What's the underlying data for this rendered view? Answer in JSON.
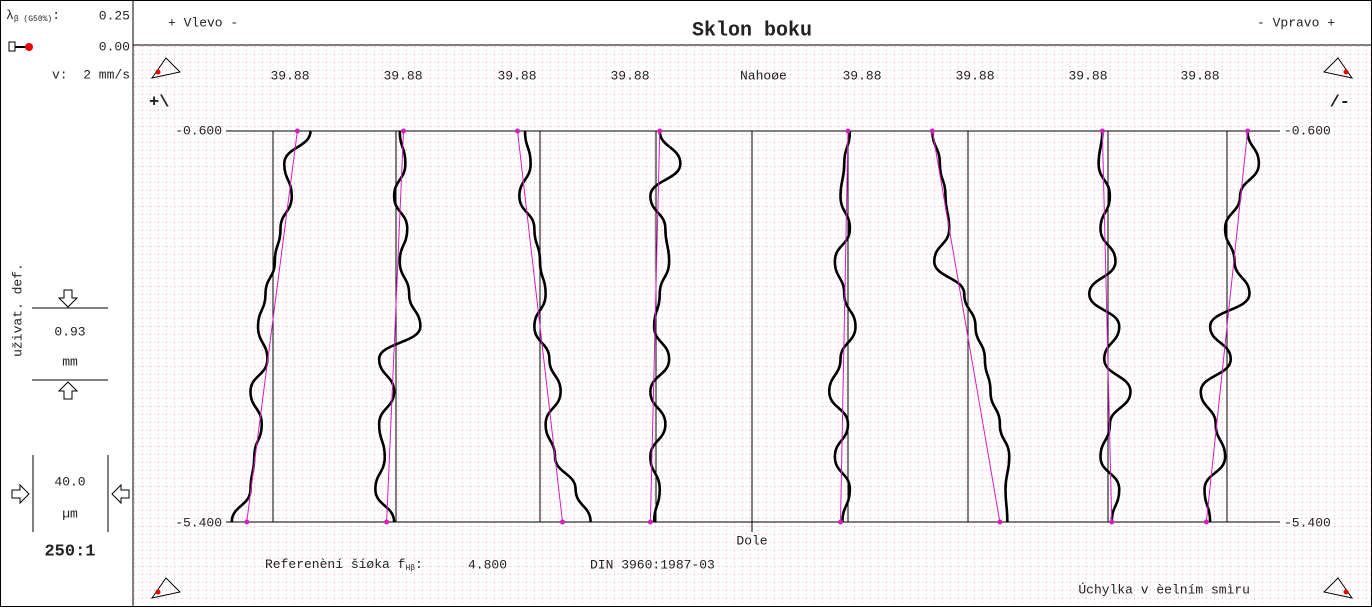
{
  "left_panel": {
    "lambda_label": "λ",
    "lambda_sub": "β (G50%)",
    "lambda_colon": ":",
    "lambda_value": 0.25,
    "probe_value": "0.00",
    "speed": "v:  2 mm/s",
    "user_def": "uživat. def.",
    "filter_value": 0.93,
    "filter_unit": "mm",
    "scale_value": "40.0",
    "scale_unit": "µm",
    "magnification": "250:1"
  },
  "header": {
    "left": "+ Vlevo -",
    "title": "Sklon boku",
    "right": "- Vpravo +"
  },
  "plot": {
    "top_values": [
      39.88,
      39.88,
      39.88,
      39.88,
      39.88,
      39.88,
      39.88,
      39.88
    ],
    "top_label": "Nahoøe",
    "bottom_label": "Dole",
    "y_top": "-0.600",
    "y_bottom": "-5.400",
    "left_marker": "+\\",
    "right_marker": "/-",
    "profiles": [
      {
        "values": [
          20,
          6,
          10,
          4,
          1,
          -4,
          -8,
          -3,
          -12,
          -6,
          -10,
          -12,
          -22
        ],
        "fit": [
          13,
          -14
        ]
      },
      {
        "values": [
          2,
          5,
          -1,
          6,
          2,
          7,
          13,
          -9,
          -1,
          -9,
          -6,
          -11,
          -1
        ],
        "fit": [
          4,
          -5
        ]
      },
      {
        "values": [
          -8,
          -5,
          -11,
          -3,
          0,
          3,
          -3,
          5,
          11,
          3,
          8,
          19,
          27
        ],
        "fit": [
          -12,
          12
        ]
      },
      {
        "values": [
          2,
          13,
          -3,
          5,
          7,
          2,
          -1,
          7,
          -3,
          5,
          -3,
          2,
          -1
        ],
        "fit": [
          2,
          -3
        ]
      },
      {
        "values": [
          1,
          -2,
          -4,
          1,
          -7,
          -2,
          4,
          -4,
          -10,
          0,
          -7,
          1,
          -3
        ],
        "fit": [
          0,
          -4
        ]
      },
      {
        "values": [
          -19,
          -15,
          -12,
          -10,
          -18,
          -2,
          4,
          9,
          12,
          17,
          22,
          20,
          21
        ],
        "fit": [
          -19,
          17
        ]
      },
      {
        "values": [
          -3,
          -5,
          1,
          -4,
          4,
          -10,
          6,
          -2,
          12,
          1,
          -4,
          6,
          2
        ],
        "fit": [
          -3,
          2
        ]
      },
      {
        "values": [
          11,
          17,
          7,
          -1,
          4,
          12,
          -9,
          2,
          -14,
          -6,
          -1,
          -12,
          -9
        ],
        "fit": [
          11,
          -11
        ]
      }
    ]
  },
  "footer": {
    "ref_label": "Referenèní šíøka f",
    "ref_sub": "Hβ",
    "ref_colon": ":",
    "ref_value": "4.800",
    "standard": "DIN 3960:1987-03",
    "direction": "Úchylka v èelním smìru"
  }
}
